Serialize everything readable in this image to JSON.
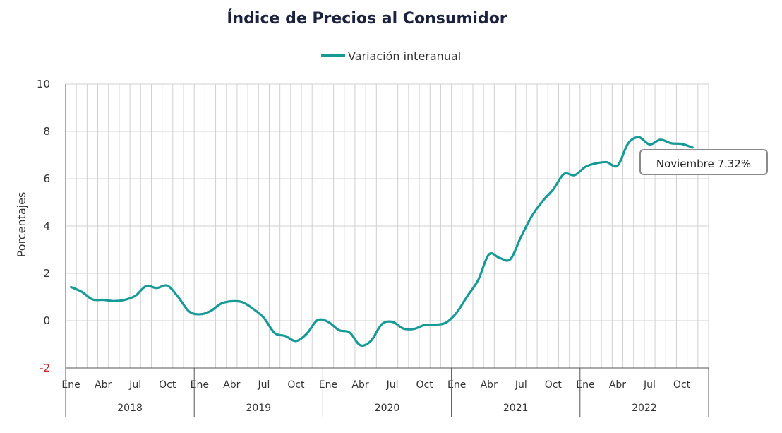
{
  "chart_data": {
    "type": "line",
    "title": "Índice de Precios al Consumidor",
    "ylabel": "Porcentajes",
    "xlabel": "",
    "ylim": [
      -2,
      10
    ],
    "yticks": [
      -2,
      0,
      2,
      4,
      6,
      8,
      10
    ],
    "grid": true,
    "legend_position": "top-center",
    "month_tick_labels": [
      "Ene",
      "Abr",
      "Jul",
      "Oct"
    ],
    "years": [
      "2018",
      "2019",
      "2020",
      "2021",
      "2022"
    ],
    "colors": {
      "line": "#169a97",
      "grid": "#d0d0d0",
      "axis": "#555555",
      "negative_tick": "#cc2222"
    },
    "tooltip": "Noviembre 7.32%",
    "series": [
      {
        "name": "Variación interanual",
        "x": [
          "2018-01",
          "2018-02",
          "2018-03",
          "2018-04",
          "2018-05",
          "2018-06",
          "2018-07",
          "2018-08",
          "2018-09",
          "2018-10",
          "2018-11",
          "2018-12",
          "2019-01",
          "2019-02",
          "2019-03",
          "2019-04",
          "2019-05",
          "2019-06",
          "2019-07",
          "2019-08",
          "2019-09",
          "2019-10",
          "2019-11",
          "2019-12",
          "2020-01",
          "2020-02",
          "2020-03",
          "2020-04",
          "2020-05",
          "2020-06",
          "2020-07",
          "2020-08",
          "2020-09",
          "2020-10",
          "2020-11",
          "2020-12",
          "2021-01",
          "2021-02",
          "2021-03",
          "2021-04",
          "2021-05",
          "2021-06",
          "2021-07",
          "2021-08",
          "2021-09",
          "2021-10",
          "2021-11",
          "2021-12",
          "2022-01",
          "2022-02",
          "2022-03",
          "2022-04",
          "2022-05",
          "2022-06",
          "2022-07",
          "2022-08",
          "2022-09",
          "2022-10",
          "2022-11"
        ],
        "values": [
          1.42,
          1.22,
          0.9,
          0.88,
          0.83,
          0.88,
          1.05,
          1.46,
          1.38,
          1.48,
          1.0,
          0.4,
          0.27,
          0.4,
          0.72,
          0.82,
          0.78,
          0.5,
          0.12,
          -0.52,
          -0.65,
          -0.86,
          -0.55,
          0.02,
          -0.05,
          -0.4,
          -0.5,
          -1.04,
          -0.85,
          -0.15,
          -0.05,
          -0.33,
          -0.35,
          -0.18,
          -0.17,
          -0.08,
          0.35,
          1.05,
          1.72,
          2.8,
          2.65,
          2.6,
          3.55,
          4.42,
          5.05,
          5.55,
          6.2,
          6.15,
          6.5,
          6.65,
          6.7,
          6.55,
          7.5,
          7.75,
          7.45,
          7.65,
          7.5,
          7.47,
          7.32
        ]
      }
    ]
  }
}
